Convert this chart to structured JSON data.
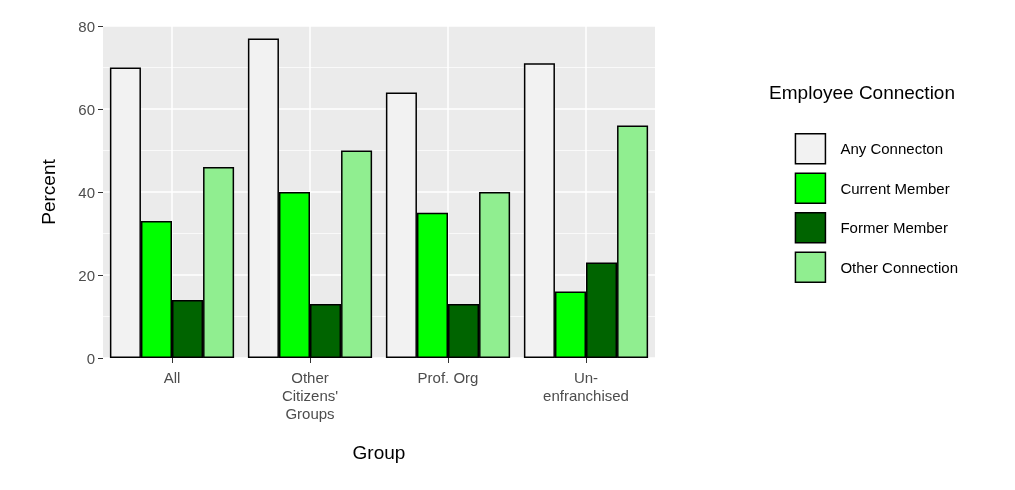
{
  "chart_data": {
    "type": "bar",
    "xlabel": "Group",
    "ylabel": "Percent",
    "legend_title": "Employee Connection",
    "categories": [
      "All",
      "Other\nCitizens'\nGroups",
      "Prof. Org",
      "Un-\nenfranchised"
    ],
    "series": [
      {
        "name": "Any Connecton",
        "color": "#f2f2f2",
        "values": [
          70,
          77,
          64,
          71
        ]
      },
      {
        "name": "Current Member",
        "color": "#00ff00",
        "values": [
          33,
          40,
          35,
          16
        ]
      },
      {
        "name": "Former Member",
        "color": "#006400",
        "values": [
          14,
          13,
          13,
          23
        ]
      },
      {
        "name": "Other Connection",
        "color": "#90ee90",
        "values": [
          46,
          50,
          40,
          56
        ]
      }
    ],
    "ylim": [
      0,
      80
    ],
    "yticks": [
      0,
      20,
      40,
      60,
      80
    ],
    "grid": true,
    "legend": "right"
  }
}
